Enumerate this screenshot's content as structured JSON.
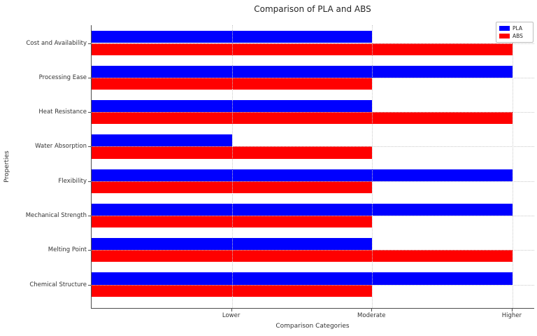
{
  "chart_data": {
    "type": "bar",
    "orientation": "horizontal",
    "title": "Comparison of PLA and ABS",
    "xlabel": "Comparison Categories",
    "ylabel": "Properties",
    "categories": [
      "Cost and Availability",
      "Processing Ease",
      "Heat Resistance",
      "Water Absorption",
      "Flexibility",
      "Mechanical Strength",
      "Melting Point",
      "Chemical Structure"
    ],
    "series": [
      {
        "name": "PLA",
        "color": "#0000ff",
        "values": [
          2,
          3,
          2,
          1,
          3,
          3,
          2,
          3
        ],
        "value_labels": [
          "Moderate",
          "Higher",
          "Moderate",
          "Lower",
          "Higher",
          "Higher",
          "Moderate",
          "Higher"
        ]
      },
      {
        "name": "ABS",
        "color": "#ff0000",
        "values": [
          3,
          2,
          3,
          2,
          2,
          2,
          3,
          2
        ],
        "value_labels": [
          "Higher",
          "Moderate",
          "Higher",
          "Moderate",
          "Moderate",
          "Moderate",
          "Higher",
          "Moderate"
        ]
      }
    ],
    "x_ticks": [
      {
        "value": 1,
        "label": "Lower"
      },
      {
        "value": 2,
        "label": "Moderate"
      },
      {
        "value": 3,
        "label": "Higher"
      }
    ],
    "xlim": [
      0,
      3.16
    ],
    "grid": "dotted",
    "grid_color": "#c9c9c9",
    "legend_position": "upper right",
    "background_color": "#ffffff",
    "text_color": "#262626"
  }
}
